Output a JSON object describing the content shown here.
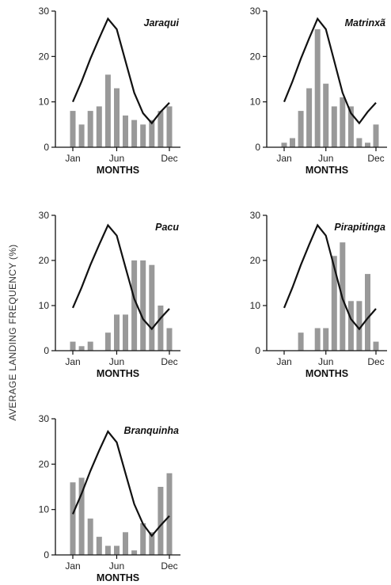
{
  "figure": {
    "ylabel": "AVERAGE LANDING FREQUENCY (%)"
  },
  "colors": {
    "bar": "#999999",
    "line": "#111111",
    "axis": "#111111"
  },
  "chart_data": [
    {
      "type": "bar",
      "title": "Jaraqui",
      "xlabel": "MONTHS",
      "ylim": [
        0,
        30
      ],
      "yticks": [
        0,
        10,
        20,
        30
      ],
      "xtick_labels": [
        "Jan",
        "Jun",
        "Dec"
      ],
      "categories": [
        "Jan",
        "Feb",
        "Mar",
        "Apr",
        "May",
        "Jun",
        "Jul",
        "Aug",
        "Sep",
        "Oct",
        "Nov",
        "Dec"
      ],
      "series": [
        {
          "kind": "bar",
          "values": [
            8,
            5,
            8,
            9,
            16,
            13,
            7,
            6,
            5,
            6,
            8,
            9
          ]
        },
        {
          "kind": "line",
          "values": [
            10,
            14.5,
            19.5,
            24,
            28.3,
            26,
            19,
            12,
            7.5,
            5.3,
            7.8,
            9.8
          ]
        }
      ]
    },
    {
      "type": "bar",
      "title": "Matrinxã",
      "xlabel": "MONTHS",
      "ylim": [
        0,
        30
      ],
      "yticks": [
        0,
        10,
        20,
        30
      ],
      "xtick_labels": [
        "Jan",
        "Jun",
        "Dec"
      ],
      "categories": [
        "Jan",
        "Feb",
        "Mar",
        "Apr",
        "May",
        "Jun",
        "Jul",
        "Aug",
        "Sep",
        "Oct",
        "Nov",
        "Dec"
      ],
      "series": [
        {
          "kind": "bar",
          "values": [
            1,
            2,
            8,
            13,
            26,
            14,
            9,
            11,
            9,
            2,
            1,
            5
          ]
        },
        {
          "kind": "line",
          "values": [
            10,
            14.5,
            19.5,
            24,
            28.3,
            26,
            19,
            12,
            7.5,
            5.3,
            7.8,
            9.8
          ]
        }
      ]
    },
    {
      "type": "bar",
      "title": "Pacu",
      "xlabel": "MONTHS",
      "ylim": [
        0,
        30
      ],
      "yticks": [
        0,
        10,
        20,
        30
      ],
      "xtick_labels": [
        "Jan",
        "Jun",
        "Dec"
      ],
      "categories": [
        "Jan",
        "Feb",
        "Mar",
        "Apr",
        "May",
        "Jun",
        "Jul",
        "Aug",
        "Sep",
        "Oct",
        "Nov",
        "Dec"
      ],
      "series": [
        {
          "kind": "bar",
          "values": [
            2,
            1,
            2,
            0,
            4,
            8,
            8,
            20,
            20,
            19,
            10,
            5
          ]
        },
        {
          "kind": "line",
          "values": [
            9.5,
            14,
            19,
            23.5,
            27.8,
            25.5,
            18.5,
            11.5,
            7,
            4.8,
            7.2,
            9.3
          ]
        }
      ]
    },
    {
      "type": "bar",
      "title": "Pirapitinga",
      "xlabel": "MONTHS",
      "ylim": [
        0,
        30
      ],
      "yticks": [
        0,
        10,
        20,
        30
      ],
      "xtick_labels": [
        "Jan",
        "Jun",
        "Dec"
      ],
      "categories": [
        "Jan",
        "Feb",
        "Mar",
        "Apr",
        "May",
        "Jun",
        "Jul",
        "Aug",
        "Sep",
        "Oct",
        "Nov",
        "Dec"
      ],
      "series": [
        {
          "kind": "bar",
          "values": [
            0,
            0,
            4,
            0,
            5,
            5,
            21,
            24,
            11,
            11,
            17,
            2
          ]
        },
        {
          "kind": "line",
          "values": [
            9.5,
            14,
            19,
            23.5,
            27.8,
            25.5,
            18.5,
            11.5,
            7,
            4.8,
            7.2,
            9.3
          ]
        }
      ]
    },
    {
      "type": "bar",
      "title": "Branquinha",
      "xlabel": "MONTHS",
      "ylim": [
        0,
        30
      ],
      "yticks": [
        0,
        10,
        20,
        30
      ],
      "xtick_labels": [
        "Jan",
        "Jun",
        "Dec"
      ],
      "categories": [
        "Jan",
        "Feb",
        "Mar",
        "Apr",
        "May",
        "Jun",
        "Jul",
        "Aug",
        "Sep",
        "Oct",
        "Nov",
        "Dec"
      ],
      "series": [
        {
          "kind": "bar",
          "values": [
            16,
            17,
            8,
            4,
            2,
            2,
            5,
            1,
            7,
            5,
            15,
            18
          ]
        },
        {
          "kind": "line",
          "values": [
            9,
            13.5,
            18.5,
            23,
            27.2,
            24.8,
            18,
            11.2,
            6.8,
            4.2,
            6.5,
            8.6
          ]
        }
      ]
    }
  ]
}
